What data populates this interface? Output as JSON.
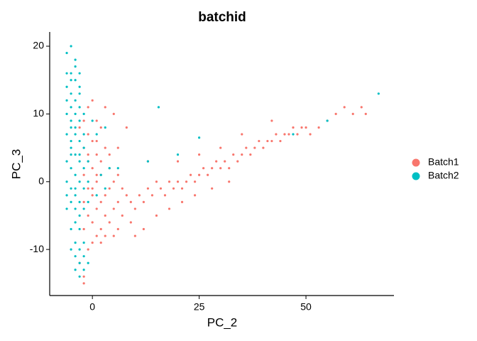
{
  "chart_data": {
    "type": "scatter",
    "title": "batchid",
    "x_label": "PC_2",
    "y_label": "PC_3",
    "xlim": [
      -10,
      70.6
    ],
    "ylim": [
      -16.8,
      22.1
    ],
    "xticks": [
      0,
      25,
      50
    ],
    "yticks": [
      -10,
      0,
      10,
      20
    ],
    "grid": false,
    "legend": "right",
    "series": [
      {
        "name": "Batch1",
        "color": "#f8766d",
        "x": [
          -2,
          -1,
          0,
          -3,
          -1,
          0,
          -2,
          1,
          -1,
          0,
          2,
          -2,
          1,
          -1,
          0,
          2,
          -2,
          1,
          3,
          -1,
          0,
          2,
          4,
          5,
          6,
          3,
          4,
          5,
          2,
          3,
          1,
          4,
          6,
          7,
          8,
          -3,
          -2,
          -1,
          0,
          1,
          -2,
          3,
          5,
          2,
          7,
          9,
          10,
          11,
          12,
          9,
          6,
          3,
          5,
          8,
          1,
          2,
          -1,
          0,
          1,
          -2,
          4,
          6,
          13,
          14,
          15,
          16,
          17,
          18,
          19,
          20,
          21,
          22,
          23,
          24,
          25,
          26,
          27,
          28,
          29,
          30,
          31,
          32,
          33,
          34,
          35,
          36,
          37,
          38,
          39,
          40,
          41,
          42,
          43,
          44,
          45,
          46,
          47,
          48,
          49,
          50,
          51,
          53,
          55,
          57,
          59,
          61,
          63,
          64,
          18,
          21,
          24,
          28,
          32,
          20,
          25,
          15,
          12,
          13,
          10,
          35,
          42,
          30
        ],
        "values": [
          9,
          11,
          12,
          8,
          7,
          6,
          5,
          4,
          3,
          2,
          1,
          1,
          0,
          -1,
          -2,
          -3,
          -3,
          -4,
          -5,
          -5,
          -6,
          -7,
          -6,
          -4,
          -3,
          -2,
          -1,
          0,
          3,
          5,
          6,
          2,
          1,
          -1,
          -2,
          -12,
          -14,
          -10,
          -9,
          -8,
          -15,
          -8,
          -8,
          -9,
          -5,
          -3,
          -4,
          -2,
          -3,
          -6,
          -7,
          11,
          10,
          8,
          9,
          8,
          4,
          -1,
          1,
          -7,
          4,
          5,
          -1,
          -2,
          0,
          -1,
          -2,
          0,
          -1,
          0,
          -1,
          0,
          1,
          0,
          1,
          2,
          1,
          2,
          3,
          2,
          3,
          2,
          4,
          3,
          4,
          5,
          4,
          5,
          6,
          5,
          6,
          6,
          7,
          6,
          7,
          7,
          8,
          7,
          8,
          8,
          7,
          8,
          9,
          10,
          11,
          10,
          11,
          10,
          -4,
          -3,
          -2,
          -1,
          0,
          3,
          4,
          -5,
          -7,
          3,
          -8,
          7,
          9,
          5
        ]
      },
      {
        "name": "Batch2",
        "color": "#00bfc4",
        "x": [
          -6,
          -5,
          -4,
          -5,
          -4,
          -6,
          -5,
          -4,
          -3,
          -5,
          -4,
          -6,
          -3,
          -5,
          -4,
          -6,
          -3,
          -5,
          -4,
          -2,
          -6,
          -3,
          -5,
          -4,
          -2,
          -6,
          -3,
          -5,
          -4,
          -2,
          -3,
          -5,
          -4,
          -2,
          -3,
          -4,
          -5,
          -3,
          -4,
          -3,
          -2,
          -4,
          -3,
          -2,
          -3,
          -4,
          -1,
          -2,
          -5,
          -6,
          -4,
          -5,
          -3,
          -6,
          -4,
          -2,
          -5,
          -3,
          -4,
          -1,
          -1,
          -1,
          0,
          1,
          3,
          2,
          4,
          6,
          15.5,
          25,
          47,
          55,
          67,
          20,
          13,
          3,
          1,
          -3,
          -6,
          -5,
          -5,
          -6,
          -2,
          -3
        ],
        "values": [
          19,
          20,
          17,
          16,
          15,
          14,
          13,
          12,
          13,
          11,
          10,
          10,
          9,
          8,
          7,
          7,
          6,
          5,
          4,
          5,
          3,
          3,
          2,
          1,
          2,
          0,
          0,
          -1,
          -2,
          -1,
          -3,
          -3,
          -4,
          -4,
          -5,
          -6,
          -7,
          -7,
          -9,
          -10,
          -11,
          -11,
          -12,
          -13,
          -14,
          -13,
          -12,
          -9,
          -10,
          -2,
          18,
          15,
          11,
          12,
          8,
          7,
          6,
          4,
          -1,
          0,
          3,
          -3,
          9,
          7,
          8,
          1,
          2,
          2,
          11,
          6.5,
          7,
          9,
          13,
          4,
          3,
          -1,
          -2,
          16,
          16,
          9,
          4,
          -4,
          10,
          14
        ]
      }
    ]
  }
}
